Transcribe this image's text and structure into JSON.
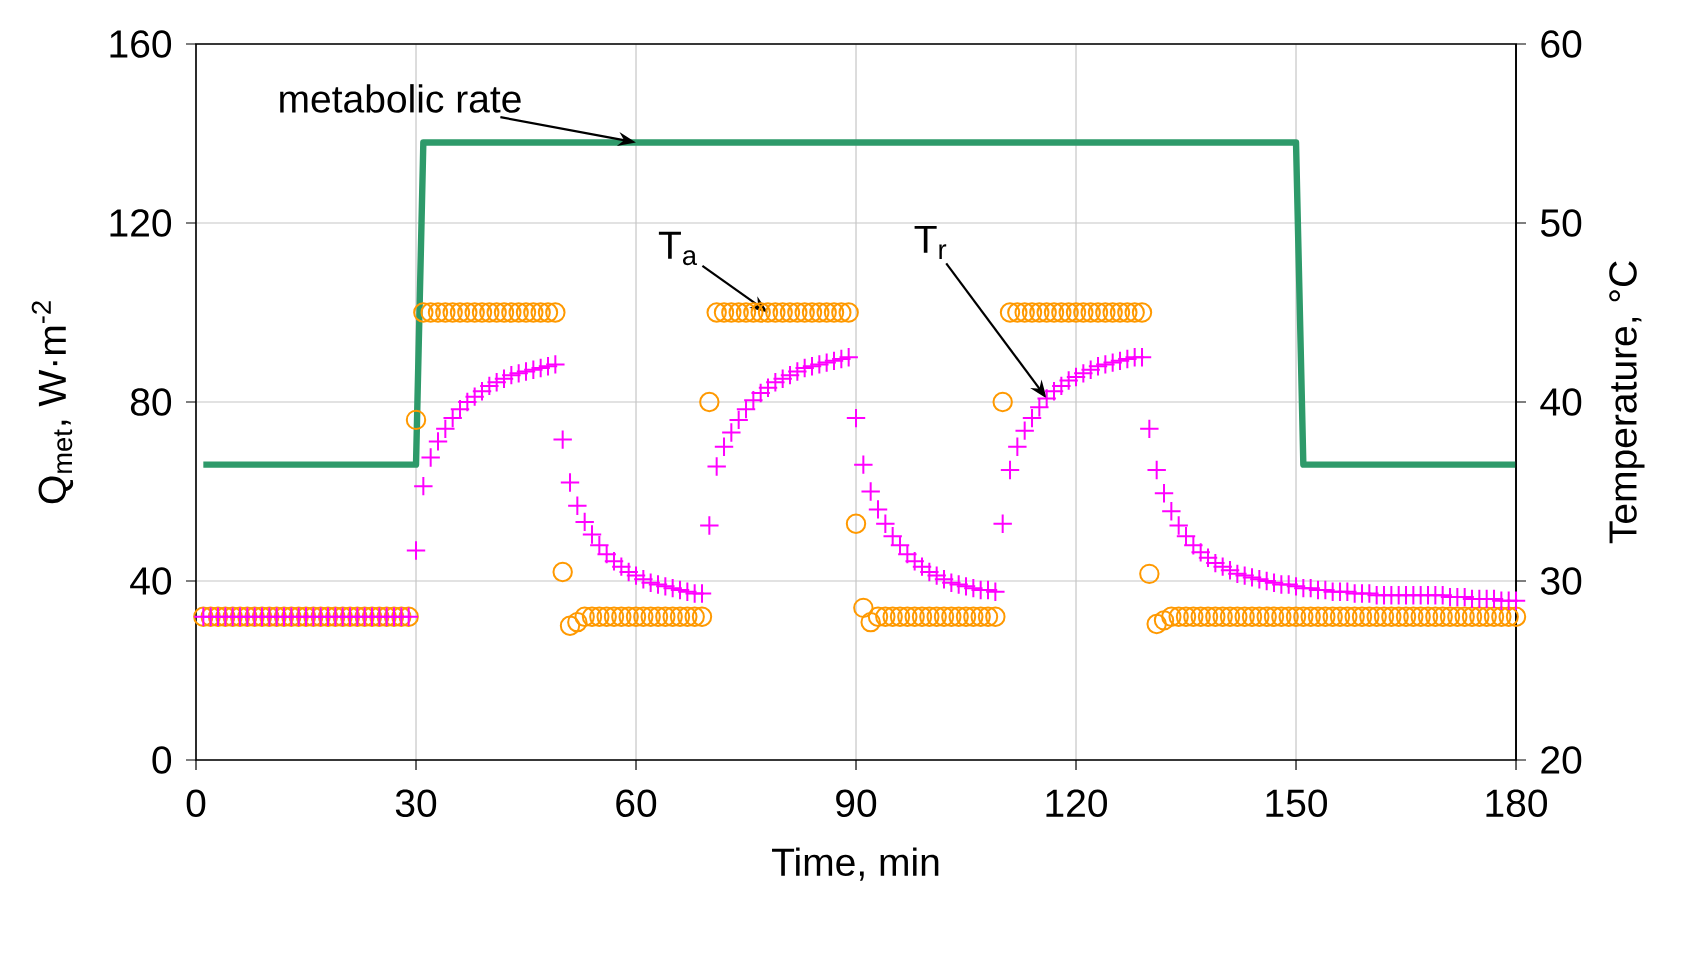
{
  "chart_data": {
    "type": "scatter",
    "xlabel": "Time, min",
    "ylabel": "Q$_{met}$, W·m$^{-2}$",
    "y2label": "Temperature, °C",
    "x": [
      1,
      2,
      3,
      4,
      5,
      6,
      7,
      8,
      9,
      10,
      11,
      12,
      13,
      14,
      15,
      16,
      17,
      18,
      19,
      20,
      21,
      22,
      23,
      24,
      25,
      26,
      27,
      28,
      29,
      30,
      31,
      32,
      33,
      34,
      35,
      36,
      37,
      38,
      39,
      40,
      41,
      42,
      43,
      44,
      45,
      46,
      47,
      48,
      49,
      50,
      51,
      52,
      53,
      54,
      55,
      56,
      57,
      58,
      59,
      60,
      61,
      62,
      63,
      64,
      65,
      66,
      67,
      68,
      69,
      70,
      71,
      72,
      73,
      74,
      75,
      76,
      77,
      78,
      79,
      80,
      81,
      82,
      83,
      84,
      85,
      86,
      87,
      88,
      89,
      90,
      91,
      92,
      93,
      94,
      95,
      96,
      97,
      98,
      99,
      100,
      101,
      102,
      103,
      104,
      105,
      106,
      107,
      108,
      109,
      110,
      111,
      112,
      113,
      114,
      115,
      116,
      117,
      118,
      119,
      120,
      121,
      122,
      123,
      124,
      125,
      126,
      127,
      128,
      129,
      130,
      131,
      132,
      133,
      134,
      135,
      136,
      137,
      138,
      139,
      140,
      141,
      142,
      143,
      144,
      145,
      146,
      147,
      148,
      149,
      150,
      151,
      152,
      153,
      154,
      155,
      156,
      157,
      158,
      159,
      160,
      161,
      162,
      163,
      164,
      165,
      166,
      167,
      168,
      169,
      170,
      171,
      172,
      173,
      174,
      175,
      176,
      177,
      178,
      179,
      180
    ],
    "series": [
      {
        "type": "line",
        "color": "#2e9a6a",
        "marker": "none",
        "x": [
          1,
          29.5,
          30,
          31,
          150,
          151,
          180
        ],
        "values": [
          66,
          66,
          66,
          138,
          138,
          66,
          66
        ]
      },
      {
        "axis": "y2",
        "name": "T$_{a}$",
        "color": "#ff9900",
        "marker": "circle",
        "values": [
          28,
          28,
          28,
          28,
          28,
          28,
          28,
          28,
          28,
          28,
          28,
          28,
          28,
          28,
          28,
          28,
          28,
          28,
          28,
          28,
          28,
          28,
          28,
          28,
          28,
          28,
          28,
          28,
          28,
          39,
          45,
          45,
          45,
          45,
          45,
          45,
          45,
          45,
          45,
          45,
          45,
          45,
          45,
          45,
          45,
          45,
          45,
          45,
          45,
          30.5,
          27.5,
          27.7,
          28,
          28,
          28,
          28,
          28,
          28,
          28,
          28,
          28,
          28,
          28,
          28,
          28,
          28,
          28,
          28,
          28,
          40,
          45,
          45,
          45,
          45,
          45,
          45,
          45,
          45,
          45,
          45,
          45,
          45,
          45,
          45,
          45,
          45,
          45,
          45,
          45,
          33.2,
          28.5,
          27.7,
          28,
          28,
          28,
          28,
          28,
          28,
          28,
          28,
          28,
          28,
          28,
          28,
          28,
          28,
          28,
          28,
          28,
          40,
          45,
          45,
          45,
          45,
          45,
          45,
          45,
          45,
          45,
          45,
          45,
          45,
          45,
          45,
          45,
          45,
          45,
          45,
          45,
          30.4,
          27.6,
          27.8,
          28,
          28,
          28,
          28,
          28,
          28,
          28,
          28,
          28,
          28,
          28,
          28,
          28,
          28,
          28,
          28,
          28,
          28,
          28,
          28,
          28,
          28,
          28,
          28,
          28,
          28,
          28,
          28,
          28,
          28,
          28,
          28,
          28,
          28,
          28,
          28,
          28,
          28,
          28,
          28,
          28,
          28,
          28,
          28,
          28,
          28,
          28,
          28
        ]
      },
      {
        "axis": "y2",
        "name": "T$_{r}$",
        "color": "#ff00ff",
        "marker": "cross",
        "values": [
          28,
          28,
          28,
          28,
          28,
          28,
          28,
          28,
          28,
          28,
          28,
          28,
          28,
          28,
          28,
          28,
          28,
          28,
          28,
          28,
          28,
          28,
          28,
          28,
          28,
          28,
          28,
          28,
          28,
          31.7,
          35.3,
          36.9,
          37.8,
          38.5,
          39.1,
          39.6,
          40.0,
          40.3,
          40.6,
          40.9,
          41.1,
          41.3,
          41.5,
          41.6,
          41.7,
          41.8,
          41.9,
          42.0,
          42.1,
          37.9,
          35.5,
          34.2,
          33.3,
          32.6,
          32.0,
          31.5,
          31.1,
          30.8,
          30.5,
          30.3,
          30.1,
          29.9,
          29.8,
          29.7,
          29.6,
          29.5,
          29.4,
          29.3,
          29.3,
          33.1,
          36.4,
          37.5,
          38.3,
          39.0,
          39.6,
          40.1,
          40.5,
          40.8,
          41.1,
          41.3,
          41.5,
          41.7,
          41.9,
          42.0,
          42.1,
          42.2,
          42.3,
          42.4,
          42.5,
          39.1,
          36.5,
          35.0,
          34.0,
          33.2,
          32.5,
          32.0,
          31.5,
          31.1,
          30.8,
          30.5,
          30.3,
          30.1,
          29.9,
          29.8,
          29.7,
          29.6,
          29.5,
          29.5,
          29.4,
          33.2,
          36.2,
          37.5,
          38.4,
          39.1,
          39.7,
          40.2,
          40.6,
          40.9,
          41.2,
          41.4,
          41.6,
          41.8,
          42.0,
          42.1,
          42.2,
          42.3,
          42.4,
          42.5,
          42.5,
          38.5,
          36.2,
          34.9,
          33.9,
          33.1,
          32.5,
          32.0,
          31.6,
          31.3,
          31.0,
          30.8,
          30.6,
          30.4,
          30.3,
          30.2,
          30.1,
          30.0,
          29.9,
          29.8,
          29.8,
          29.7,
          29.6,
          29.6,
          29.5,
          29.5,
          29.4,
          29.4,
          29.4,
          29.3,
          29.3,
          29.3,
          29.2,
          29.2,
          29.2,
          29.2,
          29.2,
          29.2,
          29.2,
          29.2,
          29.2,
          29.2,
          29.1,
          29.1,
          29.1,
          29.0,
          29.0,
          29.0,
          29.0,
          28.9,
          28.9,
          28.9
        ]
      }
    ],
    "xlim": [
      0,
      180
    ],
    "xticks": [
      0,
      30,
      60,
      90,
      120,
      150,
      180
    ],
    "ylim": [
      0,
      160
    ],
    "yticks": [
      0,
      40,
      80,
      120,
      160
    ],
    "y2lim": [
      20,
      60
    ],
    "y2ticks": [
      20,
      30,
      40,
      50,
      60
    ],
    "grid": true,
    "annotations": [
      {
        "text": "metabolic rate",
        "x": 60,
        "y": 138
      }
    ]
  }
}
